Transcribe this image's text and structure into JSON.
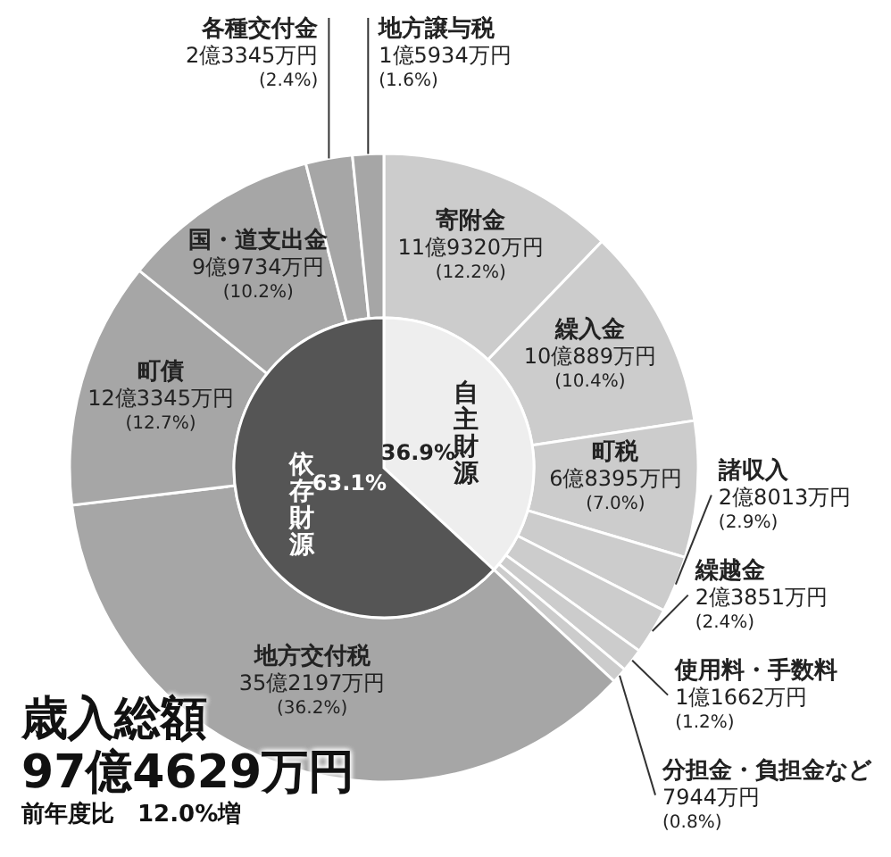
{
  "chart_data": [
    {
      "type": "donut",
      "title": "歳入総額",
      "subtitle": "97億4629万円",
      "annotations": [
        "前年度比　12.0%増"
      ],
      "categories": [
        "寄附金",
        "繰入金",
        "町税",
        "諸収入",
        "繰越金",
        "使用料・手数料",
        "分担金・負担金など",
        "地方交付税",
        "町債",
        "国・道支出金",
        "各種交付金",
        "地方譲与税"
      ],
      "values": [
        12.2,
        10.4,
        7.0,
        2.9,
        2.4,
        1.2,
        0.8,
        36.2,
        12.7,
        10.2,
        2.4,
        1.6
      ],
      "colors": [
        "#cccccc",
        "#cccccc",
        "#cccccc",
        "#cccccc",
        "#cccccc",
        "#cccccc",
        "#cccccc",
        "#a6a6a6",
        "#a6a6a6",
        "#a6a6a6",
        "#a6a6a6",
        "#a6a6a6"
      ],
      "value_labels": [
        "11億9320万円 (12.2%)",
        "10億889万円 (10.4%)",
        "6億8395万円 (7.0%)",
        "2億8013万円 (2.9%)",
        "2億3851万円 (2.4%)",
        "1億1662万円 (1.2%)",
        "7944万円 (0.8%)",
        "35億2197万円 (36.2%)",
        "12億3345万円 (12.7%)",
        "9億9734万円 (10.2%)",
        "2億3345万円 (2.4%)",
        "1億5934万円 (1.6%)"
      ]
    },
    {
      "type": "pie",
      "categories": [
        "自主財源",
        "依存財源"
      ],
      "values": [
        36.9,
        63.1
      ],
      "colors": [
        "#eeeeee",
        "#555555"
      ],
      "value_labels": [
        "36.9%",
        "63.1%"
      ]
    }
  ]
}
